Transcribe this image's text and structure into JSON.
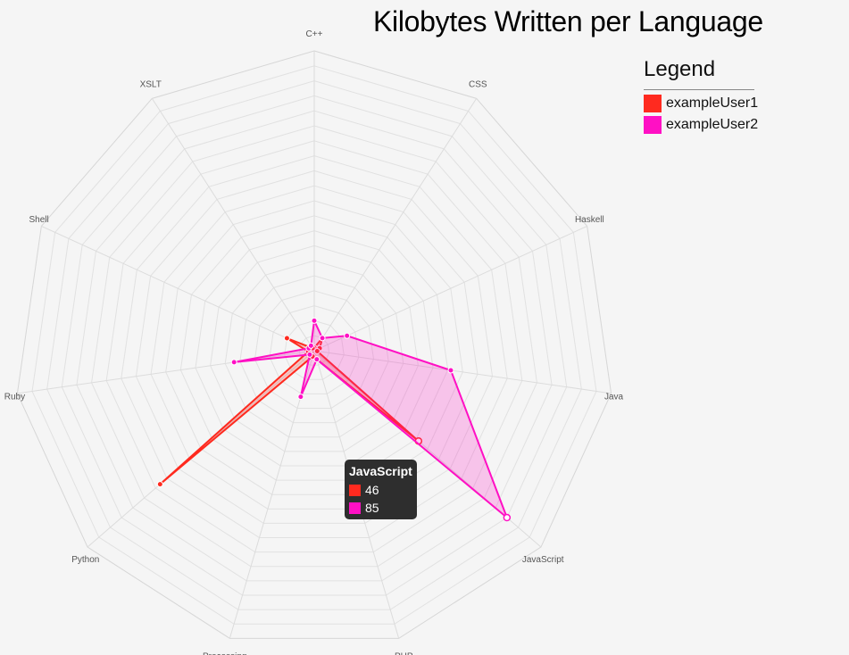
{
  "chart_data": {
    "type": "radar",
    "title": "Kilobytes Written per Language",
    "categories": [
      "C++",
      "CSS",
      "Haskell",
      "Java",
      "JavaScript",
      "PHP",
      "Processing",
      "Python",
      "Ruby",
      "Shell",
      "XSLT"
    ],
    "rlim": [
      0,
      100
    ],
    "grid": true,
    "grid_rings": 20,
    "series": [
      {
        "name": "exampleUser1",
        "color": "#ff2a1f",
        "values": [
          1,
          5,
          2,
          1,
          46,
          3,
          2,
          68,
          2,
          10,
          1
        ]
      },
      {
        "name": "exampleUser2",
        "color": "#ff10c4",
        "values": [
          10,
          5,
          12,
          46,
          85,
          3,
          16,
          2,
          27,
          2,
          2
        ]
      }
    ],
    "legend": {
      "title": "Legend",
      "placement": "top-right"
    }
  },
  "tooltip": {
    "title": "JavaScript",
    "rows": [
      {
        "value": "46",
        "color": "#ff2a1f"
      },
      {
        "value": "85",
        "color": "#ff10c4"
      }
    ]
  }
}
